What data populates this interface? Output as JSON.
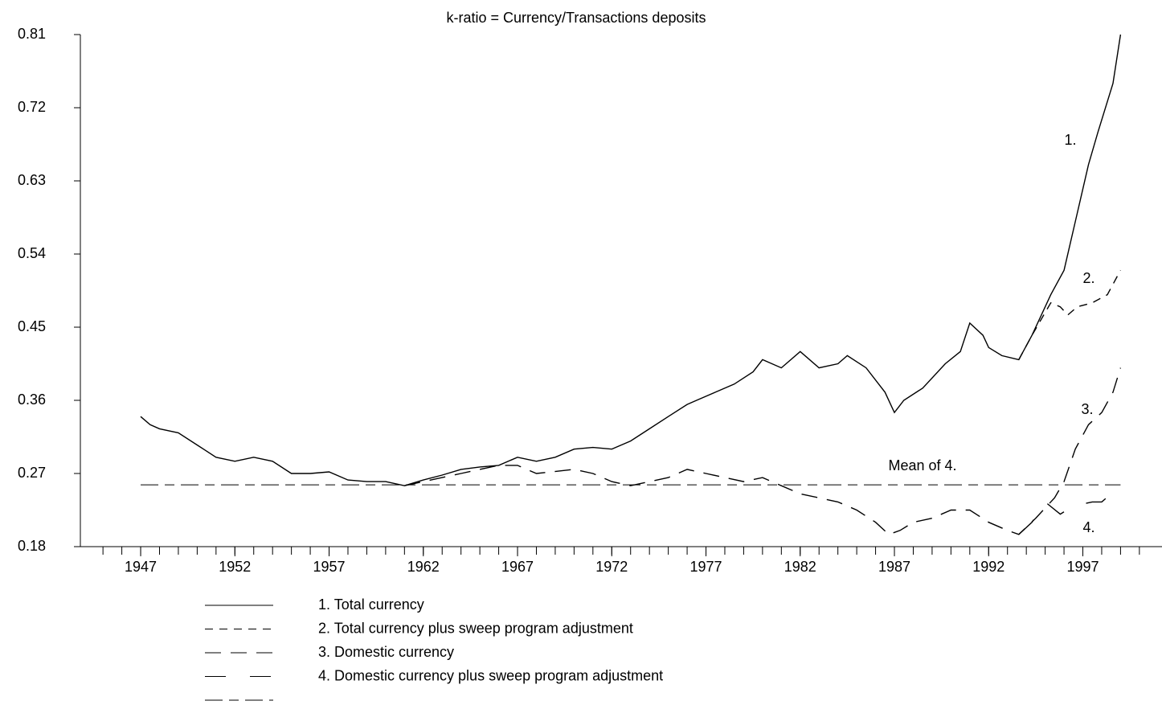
{
  "chart_data": {
    "type": "line",
    "title": "k-ratio = Currency/Transactions deposits",
    "xlim": [
      1943.8,
      2001.2
    ],
    "ylim": [
      0.18,
      0.81
    ],
    "xticks": [
      1947,
      1952,
      1957,
      1962,
      1967,
      1972,
      1977,
      1982,
      1987,
      1992,
      1997
    ],
    "xminorticks": [
      1945,
      1946,
      1947,
      1948,
      1949,
      1950,
      1951,
      1952,
      1953,
      1954,
      1955,
      1956,
      1957,
      1958,
      1959,
      1960,
      1961,
      1962,
      1963,
      1964,
      1965,
      1966,
      1967,
      1968,
      1969,
      1970,
      1971,
      1972,
      1973,
      1974,
      1975,
      1976,
      1977,
      1978,
      1979,
      1980,
      1981,
      1982,
      1983,
      1984,
      1985,
      1986,
      1987,
      1988,
      1989,
      1990,
      1991,
      1992,
      1993,
      1994,
      1995,
      1996,
      1997,
      1998,
      1999,
      2000
    ],
    "yticks": [
      0.18,
      0.27,
      0.36,
      0.45,
      0.54,
      0.63,
      0.72,
      0.81
    ],
    "series": [
      {
        "name": "1. Total currency",
        "color": "#000000",
        "x": [
          1947,
          1947.5,
          1948,
          1949,
          1950,
          1951,
          1952,
          1953,
          1954,
          1955,
          1956,
          1957,
          1958,
          1959,
          1960,
          1961,
          1962,
          1963,
          1964,
          1965,
          1966,
          1967,
          1968,
          1969,
          1970,
          1971,
          1972,
          1973,
          1974,
          1975,
          1976,
          1976.5,
          1977.5,
          1978.5,
          1979.5,
          1980,
          1981,
          1982,
          1983,
          1984,
          1984.5,
          1985.5,
          1986.5,
          1987,
          1987.5,
          1988.5,
          1989.7,
          1990.5,
          1991,
          1991.7,
          1992,
          1992.7,
          1993.6,
          1994.3,
          1995.3,
          1996,
          1996.7,
          1997.3,
          1997.8,
          1998.6,
          1999
        ],
        "values": [
          0.34,
          0.33,
          0.325,
          0.32,
          0.305,
          0.29,
          0.285,
          0.29,
          0.285,
          0.27,
          0.27,
          0.272,
          0.262,
          0.26,
          0.26,
          0.255,
          0.262,
          0.268,
          0.275,
          0.278,
          0.28,
          0.29,
          0.285,
          0.29,
          0.3,
          0.302,
          0.3,
          0.31,
          0.325,
          0.34,
          0.355,
          0.36,
          0.37,
          0.38,
          0.395,
          0.41,
          0.4,
          0.42,
          0.4,
          0.405,
          0.415,
          0.4,
          0.37,
          0.345,
          0.36,
          0.375,
          0.405,
          0.42,
          0.455,
          0.44,
          0.425,
          0.415,
          0.41,
          0.44,
          0.49,
          0.52,
          0.59,
          0.65,
          0.69,
          0.75,
          0.81
        ]
      },
      {
        "name": "2. Total currency plus sweep program adjustment",
        "color": "#000000",
        "x": [
          1993.6,
          1994.3,
          1995.3,
          1995.8,
          1996.2,
          1996.7,
          1997.5,
          1998.3,
          1999
        ],
        "values": [
          0.41,
          0.44,
          0.48,
          0.475,
          0.465,
          0.475,
          0.48,
          0.49,
          0.52
        ]
      },
      {
        "name": "3. Domestic currency",
        "color": "#000000",
        "x": [
          1961,
          1964,
          1966,
          1967,
          1968,
          1970,
          1971,
          1972,
          1973,
          1975,
          1976,
          1977,
          1978,
          1979,
          1980,
          1981,
          1982,
          1983,
          1984,
          1985,
          1986,
          1986.7,
          1987.3,
          1988,
          1989,
          1990,
          1991,
          1992,
          1993,
          1993.6,
          1994.5,
          1995.5,
          1996,
          1996.6,
          1997.3,
          1998,
          1998.6,
          1999
        ],
        "values": [
          0.255,
          0.27,
          0.28,
          0.28,
          0.27,
          0.275,
          0.27,
          0.26,
          0.255,
          0.265,
          0.275,
          0.27,
          0.265,
          0.26,
          0.265,
          0.255,
          0.245,
          0.24,
          0.235,
          0.225,
          0.21,
          0.195,
          0.2,
          0.21,
          0.215,
          0.225,
          0.225,
          0.21,
          0.2,
          0.195,
          0.215,
          0.24,
          0.26,
          0.3,
          0.33,
          0.345,
          0.37,
          0.4
        ]
      },
      {
        "name": "4. Domestic currency plus sweep program adjustment",
        "color": "#000000",
        "x": [
          1993.6,
          1994.3,
          1995,
          1995.8,
          1996.5,
          1997.5,
          1998,
          1998.5
        ],
        "values": [
          0.195,
          0.21,
          0.235,
          0.22,
          0.23,
          0.235,
          0.235,
          0.245
        ]
      }
    ],
    "mean_line": {
      "value": 0.256,
      "label": "Mean of 4."
    },
    "annotations": [
      "1.",
      "2.",
      "3.",
      "4."
    ]
  }
}
